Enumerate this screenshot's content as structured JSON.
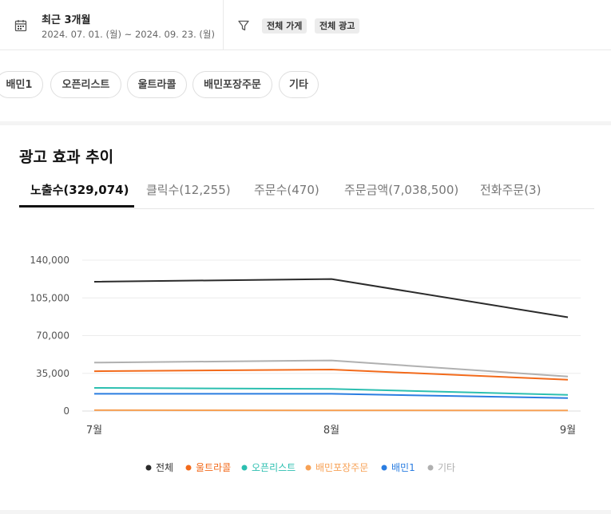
{
  "filter": {
    "period_label": "최근 3개월",
    "date_range": "2024. 07. 01. (월) ~ 2024. 09. 23. (월)",
    "tags": [
      "전체 가게",
      "전체 광고"
    ]
  },
  "ad_types": [
    "배민1",
    "오픈리스트",
    "울트라콜",
    "배민포장주문",
    "기타"
  ],
  "section_title": "광고 효과 추이",
  "tabs": [
    "노출수(329,074)",
    "클릭수(12,255)",
    "주문수(470)",
    "주문금액(7,038,500)",
    "전화주문(3)"
  ],
  "active_tab": 0,
  "chart_data": {
    "type": "line",
    "categories": [
      "7월",
      "8월",
      "9월"
    ],
    "yticks": [
      "140,000",
      "105,000",
      "70,000",
      "35,000",
      "0"
    ],
    "ylim": [
      0,
      140000
    ],
    "grid": true,
    "legend_position": "bottom",
    "series": [
      {
        "name": "전체",
        "color": "#2b2b2b",
        "values": [
          120000,
          122500,
          87000
        ]
      },
      {
        "name": "울트라콜",
        "color": "#f26a1b",
        "values": [
          37000,
          38500,
          29000
        ]
      },
      {
        "name": "오픈리스트",
        "color": "#2cbfb0",
        "values": [
          21500,
          20500,
          15000
        ]
      },
      {
        "name": "배민포장주문",
        "color": "#f7a155",
        "values": [
          800,
          700,
          500
        ]
      },
      {
        "name": "배민1",
        "color": "#2a7de1",
        "values": [
          16000,
          16000,
          12000
        ]
      },
      {
        "name": "기타",
        "color": "#b0b0b0",
        "values": [
          45000,
          47000,
          32000
        ]
      }
    ]
  }
}
